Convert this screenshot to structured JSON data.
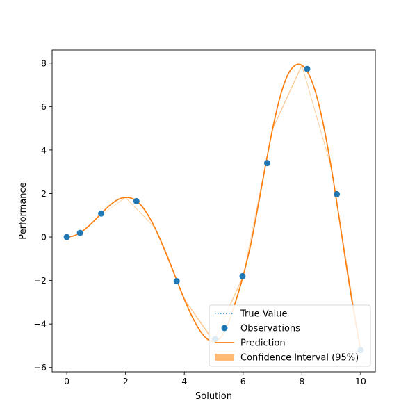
{
  "chart_data": {
    "type": "line",
    "title": "",
    "xlabel": "Solution",
    "ylabel": "Performance",
    "xlim": [
      -0.5,
      10.5
    ],
    "ylim": [
      -6.2,
      8.6
    ],
    "x_ticks": [
      0,
      2,
      4,
      6,
      8,
      10
    ],
    "y_ticks": [
      -6,
      -4,
      -2,
      0,
      2,
      4,
      6,
      8
    ],
    "x_tick_labels": [
      "0",
      "2",
      "4",
      "6",
      "8",
      "10"
    ],
    "y_tick_labels": [
      "−6",
      "−4",
      "−2",
      "0",
      "2",
      "4",
      "6",
      "8"
    ],
    "grid": false,
    "legend_position": "lower-right",
    "colors": {
      "true_value": "#1f77b4",
      "observations": "#1f77b4",
      "prediction": "#ff7f0e",
      "confidence": "#ffbb78"
    },
    "legend": [
      "True Value",
      "Observations",
      "Prediction",
      "Confidence Interval (95%)"
    ],
    "series": [
      {
        "name": "True Value",
        "style": "dotted",
        "x": [
          0,
          0.25,
          0.5,
          0.75,
          1.0,
          1.25,
          1.5,
          1.75,
          2.0,
          2.25,
          2.5,
          2.75,
          3.0,
          3.25,
          3.5,
          3.75,
          4.0,
          4.25,
          4.5,
          4.75,
          5.0,
          5.25,
          5.5,
          5.75,
          6.0,
          6.25,
          6.5,
          6.75,
          7.0,
          7.25,
          7.5,
          7.75,
          8.0,
          8.25,
          8.5,
          8.75,
          9.0,
          9.25,
          9.5,
          9.75,
          10.0
        ],
        "y": [
          0,
          0.06,
          0.24,
          0.51,
          0.84,
          1.19,
          1.5,
          1.73,
          1.82,
          1.76,
          1.5,
          1.04,
          0.42,
          -0.33,
          -1.15,
          -2.02,
          -2.86,
          -3.62,
          -4.24,
          -4.66,
          -4.8,
          -4.6,
          -3.95,
          -2.95,
          -1.8,
          -0.4,
          1.35,
          3.2,
          4.95,
          6.4,
          7.4,
          7.88,
          7.9,
          7.45,
          6.5,
          5.05,
          3.2,
          1.05,
          -1.2,
          -3.3,
          -5.2
        ]
      },
      {
        "name": "Prediction",
        "style": "solid",
        "x": [
          0,
          0.25,
          0.5,
          0.75,
          1.0,
          1.25,
          1.5,
          1.75,
          2.0,
          2.25,
          2.5,
          2.75,
          3.0,
          3.25,
          3.5,
          3.75,
          4.0,
          4.25,
          4.5,
          4.75,
          5.0,
          5.25,
          5.5,
          5.75,
          6.0,
          6.25,
          6.5,
          6.75,
          7.0,
          7.25,
          7.5,
          7.75,
          8.0,
          8.25,
          8.5,
          8.75,
          9.0,
          9.25,
          9.5,
          9.75,
          10.0
        ],
        "y": [
          0,
          0.06,
          0.24,
          0.51,
          0.84,
          1.19,
          1.5,
          1.73,
          1.82,
          1.76,
          1.5,
          1.04,
          0.42,
          -0.33,
          -1.15,
          -2.02,
          -2.86,
          -3.62,
          -4.24,
          -4.66,
          -4.8,
          -4.6,
          -3.95,
          -2.95,
          -1.8,
          -0.4,
          1.35,
          3.2,
          4.95,
          6.4,
          7.4,
          7.88,
          7.9,
          7.45,
          6.5,
          5.05,
          3.2,
          1.05,
          -1.2,
          -3.3,
          -5.2
        ]
      }
    ],
    "confidence_interval": {
      "name": "Confidence Interval (95%)",
      "x": [
        0,
        1.0,
        2.0,
        3.0,
        4.0,
        5.0,
        6.0,
        7.0,
        8.0,
        9.0,
        10.0
      ],
      "lower": [
        0,
        0.84,
        1.8,
        0.4,
        -2.9,
        -4.85,
        -1.85,
        4.9,
        7.85,
        3.15,
        -5.3
      ],
      "upper": [
        0,
        0.84,
        1.84,
        0.44,
        -2.82,
        -4.75,
        -1.75,
        5.0,
        7.95,
        3.25,
        -5.1
      ]
    },
    "observations": {
      "name": "Observations",
      "x": [
        0.0,
        0.45,
        1.17,
        2.37,
        3.74,
        5.05,
        5.98,
        6.82,
        8.18,
        9.19,
        10.0
      ],
      "y": [
        0.0,
        0.19,
        1.08,
        1.65,
        -2.03,
        -4.7,
        -1.8,
        3.4,
        7.73,
        1.97,
        -5.2
      ]
    }
  }
}
